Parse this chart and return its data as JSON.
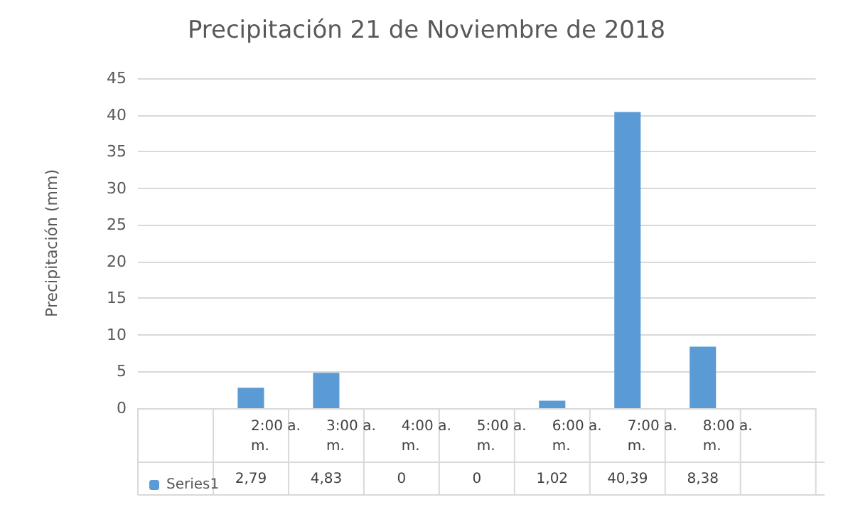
{
  "chart_data": {
    "type": "bar",
    "title": "Precipitación 21 de Noviembre de 2018",
    "ylabel": "Precipitación (mm)",
    "categories": [
      null,
      "2:00 a. m.",
      "3:00 a. m.",
      "4:00 a. m.",
      "5:00 a. m.",
      "6:00 a. m.",
      "7:00 a. m.",
      "8:00 a. m.",
      null
    ],
    "series": [
      {
        "name": "Series1",
        "color": "#5b9bd5",
        "values": [
          null,
          2.79,
          4.83,
          0,
          0,
          1.02,
          40.39,
          8.38,
          null
        ],
        "value_labels": [
          null,
          "2,79",
          "4,83",
          "0",
          "0",
          "1,02",
          "40,39",
          "8,38",
          null
        ]
      }
    ],
    "ylim": [
      0,
      45
    ],
    "yticks": [
      0,
      5,
      10,
      15,
      20,
      25,
      30,
      35,
      40,
      45
    ],
    "grid": "y",
    "legend": "bottom left"
  }
}
